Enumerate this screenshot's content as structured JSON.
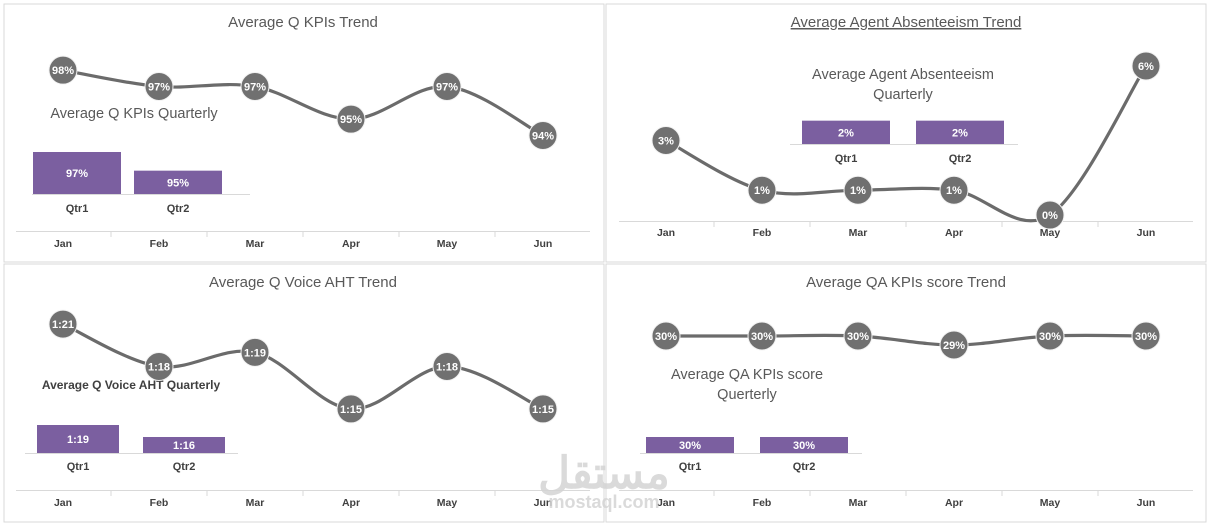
{
  "colors": {
    "line": "#6b6b6b",
    "marker": "#707070",
    "bar": "#7b5fa0",
    "axis": "#d9d9d9",
    "panel_border": "#d9d9d9"
  },
  "watermark": {
    "arabic": "مستقل",
    "latin": "mostaql.com"
  },
  "chart_data": [
    {
      "type": "line",
      "title": "Average Q KPIs Trend",
      "title_underline": false,
      "categories": [
        "Jan",
        "Feb",
        "Mar",
        "Apr",
        "May",
        "Jun"
      ],
      "values": [
        98,
        97,
        97,
        95,
        97,
        94
      ],
      "labels": [
        "98%",
        "97%",
        "97%",
        "95%",
        "97%",
        "94%"
      ],
      "ylim": [
        92.5,
        98.5
      ],
      "inset": {
        "type": "bar",
        "title_lines": [
          "Average Q KPIs Quarterly"
        ],
        "title_bold": false,
        "categories": [
          "Qtr1",
          "Qtr2"
        ],
        "values": [
          97,
          95
        ],
        "labels": [
          "97%",
          "95%"
        ],
        "ylim": [
          94,
          97
        ]
      }
    },
    {
      "type": "line",
      "title": "Average Agent Absenteeism Trend",
      "title_underline": true,
      "categories": [
        "Jan",
        "Feb",
        "Mar",
        "Apr",
        "May",
        "Jun"
      ],
      "values": [
        3,
        1,
        1,
        1,
        0,
        6
      ],
      "labels": [
        "3%",
        "1%",
        "1%",
        "1%",
        "0%",
        "6%"
      ],
      "ylim": [
        -0.2,
        6.2
      ],
      "inset": {
        "type": "bar",
        "title_lines": [
          "Average Agent Absenteeism",
          "Quarterly"
        ],
        "title_bold": false,
        "categories": [
          "Qtr1",
          "Qtr2"
        ],
        "values": [
          2,
          2
        ],
        "labels": [
          "2%",
          "2%"
        ],
        "ylim": [
          0,
          2.1
        ]
      }
    },
    {
      "type": "line",
      "title": "Average Q Voice AHT Trend",
      "title_underline": false,
      "categories": [
        "Jan",
        "Feb",
        "Mar",
        "Apr",
        "May",
        "Jun"
      ],
      "values": [
        81,
        78,
        79,
        75,
        78,
        75
      ],
      "labels": [
        "1:21",
        "1:18",
        "1:19",
        "1:15",
        "1:18",
        "1:15"
      ],
      "ylim": [
        74.5,
        81.5
      ],
      "inset": {
        "type": "bar",
        "title_lines": [
          "Average Q Voice AHT Quarterly"
        ],
        "title_bold": true,
        "categories": [
          "Qtr1",
          "Qtr2"
        ],
        "values": [
          79,
          76
        ],
        "labels": [
          "1:19",
          "1:16"
        ],
        "ylim": [
          75,
          79
        ]
      }
    },
    {
      "type": "line",
      "title": "Average QA KPIs score Trend",
      "title_underline": false,
      "categories": [
        "Jan",
        "Feb",
        "Mar",
        "Apr",
        "May",
        "Jun"
      ],
      "values": [
        30,
        30,
        30,
        29,
        30,
        30
      ],
      "labels": [
        "30%",
        "30%",
        "30%",
        "29%",
        "30%",
        "30%"
      ],
      "ylim": [
        29,
        30
      ],
      "inset": {
        "type": "bar",
        "title_lines": [
          "Average QA KPIs score",
          "Querterly"
        ],
        "title_bold": false,
        "categories": [
          "Qtr1",
          "Qtr2"
        ],
        "values": [
          30,
          30
        ],
        "labels": [
          "30%",
          "30%"
        ],
        "ylim": [
          29.2,
          30
        ]
      }
    }
  ]
}
